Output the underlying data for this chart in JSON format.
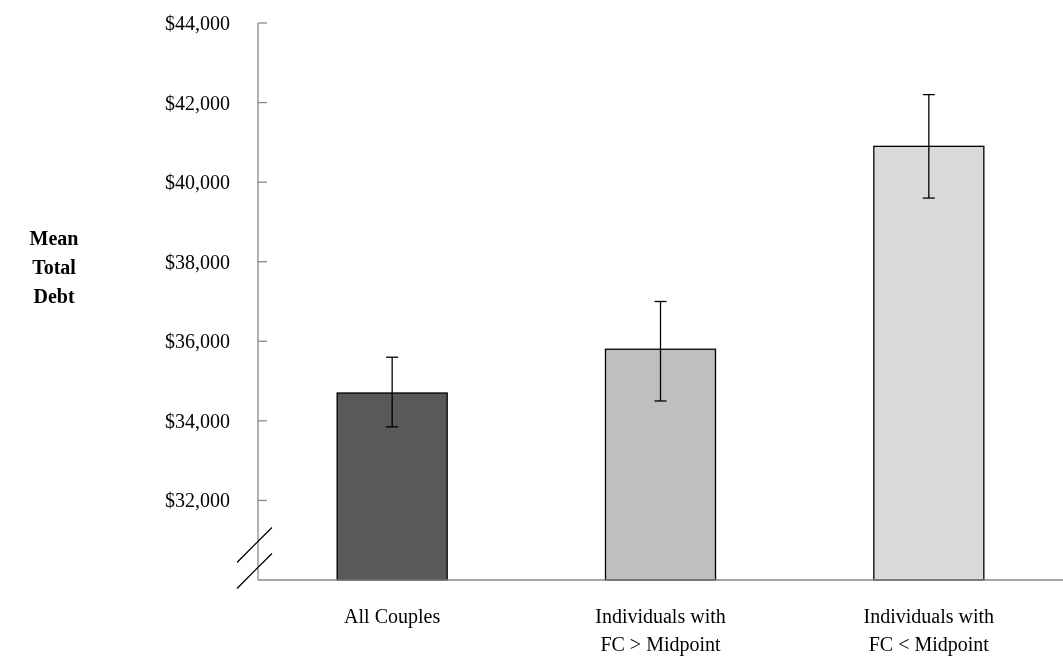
{
  "chart_data": {
    "type": "bar",
    "ylabel": "Mean Total Debt",
    "categories": [
      "All Couples",
      "Individuals with\nFC > Midpoint",
      "Individuals with\nFC < Midpoint"
    ],
    "values": [
      34700,
      35800,
      40900
    ],
    "colors": [
      "#595959",
      "#bfbfbf",
      "#d9d9d9"
    ],
    "errors": [
      [
        33850,
        35600
      ],
      [
        34500,
        37000
      ],
      [
        39600,
        42200
      ]
    ],
    "ylim": [
      30000,
      44000
    ],
    "yticks": [
      {
        "value": 32000,
        "label": "$32,000"
      },
      {
        "value": 34000,
        "label": "$34,000"
      },
      {
        "value": 36000,
        "label": "$36,000"
      },
      {
        "value": 38000,
        "label": "$38,000"
      },
      {
        "value": 40000,
        "label": "$40,000"
      },
      {
        "value": 42000,
        "label": "$42,000"
      },
      {
        "value": 44000,
        "label": "$44,000"
      }
    ],
    "grid": false
  }
}
